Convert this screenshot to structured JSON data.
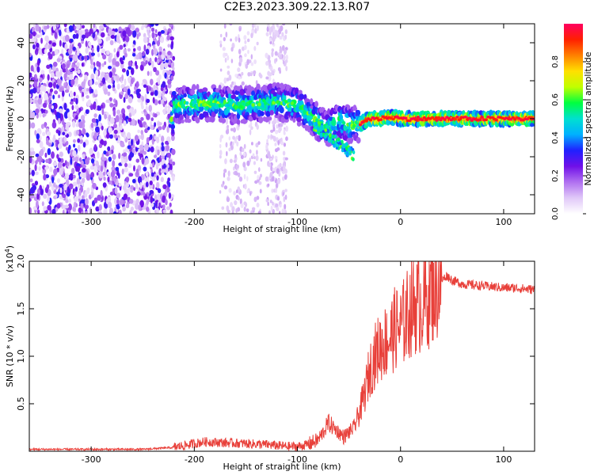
{
  "figure_title": "C2E3.2023.309.22.13.R07",
  "chart_data": [
    {
      "type": "heatmap",
      "xlabel": "Height of straight line (km)",
      "ylabel": "Frequency (Hz)",
      "xlim": [
        -360,
        130
      ],
      "ylim": [
        -50,
        50
      ],
      "xticks": [
        -300,
        -200,
        -100,
        0,
        100
      ],
      "yticks": [
        -40,
        -20,
        0,
        20,
        40
      ],
      "colorbar": {
        "label": "Normalized spectral amplitude",
        "range": [
          0,
          1
        ],
        "ticks": [
          "0.0",
          "0.2",
          "0.4",
          "0.6",
          "0.8"
        ],
        "colors": [
          "#ffffff",
          "#e0c8f8",
          "#b070f0",
          "#7010e8",
          "#2020ff",
          "#00b0ff",
          "#00e0d0",
          "#00ff40",
          "#c0ff00",
          "#ffe000",
          "#ff8000",
          "#ff2000",
          "#ff0060"
        ]
      },
      "ridge": {
        "x": [
          -220,
          -200,
          -180,
          -160,
          -140,
          -120,
          -100,
          -90,
          -80,
          -70,
          -60,
          -50,
          -40,
          -30,
          -20,
          -10,
          0,
          20,
          50,
          80,
          110,
          130
        ],
        "y": [
          7,
          8,
          8,
          7,
          8,
          9,
          7,
          3,
          -2,
          -5,
          -1,
          -3,
          -3,
          0,
          0,
          1,
          0,
          0,
          0,
          0,
          0,
          0
        ]
      }
    },
    {
      "type": "line",
      "xlabel": "Height of straight line (km)",
      "ylabel": "SNR (10 * v/v)",
      "yscale_label": "(x10",
      "yscale_exp": "4",
      "yscale_close": ")",
      "xlim": [
        -360,
        130
      ],
      "ylim": [
        0,
        2.0
      ],
      "xticks": [
        -300,
        -200,
        -100,
        0,
        100
      ],
      "yticks": [
        "0.5",
        "1.0",
        "1.5",
        "2.0"
      ],
      "series": [
        {
          "color": "#e8403a",
          "x": [
            -360,
            -250,
            -220,
            -200,
            -190,
            -170,
            -150,
            -130,
            -110,
            -100,
            -90,
            -80,
            -75,
            -70,
            -65,
            -60,
            -55,
            -50,
            -45,
            -40,
            -35,
            -30,
            -25,
            -20,
            -15,
            -10,
            -5,
            0,
            5,
            10,
            15,
            20,
            25,
            30,
            35,
            40,
            45,
            50,
            55,
            60,
            70,
            80,
            90,
            100,
            110,
            120,
            130
          ],
          "y": [
            0.02,
            0.02,
            0.04,
            0.08,
            0.1,
            0.09,
            0.08,
            0.07,
            0.05,
            0.05,
            0.07,
            0.12,
            0.2,
            0.3,
            0.25,
            0.2,
            0.15,
            0.2,
            0.25,
            0.4,
            0.6,
            0.85,
            1.0,
            1.1,
            1.15,
            1.2,
            1.3,
            1.3,
            1.4,
            1.5,
            1.55,
            1.55,
            1.6,
            1.7,
            1.75,
            1.8,
            1.85,
            1.8,
            1.78,
            1.76,
            1.75,
            1.74,
            1.73,
            1.72,
            1.72,
            1.71,
            1.7
          ]
        }
      ]
    }
  ]
}
